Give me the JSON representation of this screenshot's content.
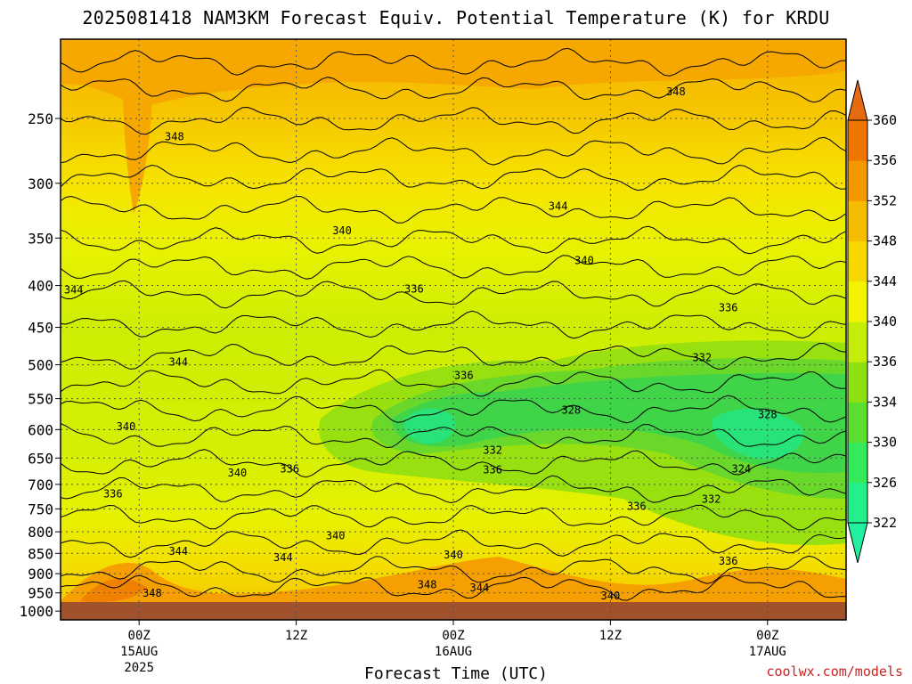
{
  "chart_data": {
    "type": "heatmap",
    "title": "2025081418 NAM3KM Forecast Equiv. Potential Temperature (K) for KRDU",
    "xlabel": "Forecast Time (UTC)",
    "ylabel": "",
    "y_axis": {
      "scale": "pressure",
      "ticks": [
        250,
        300,
        350,
        400,
        450,
        500,
        550,
        600,
        650,
        700,
        750,
        800,
        850,
        900,
        950,
        1000
      ],
      "range": [
        200,
        1025
      ]
    },
    "x_axis": {
      "range_hours": [
        -6,
        54
      ],
      "ticks": [
        {
          "hour": 0,
          "label": "00Z",
          "sub": "15AUG",
          "sub2": "2025"
        },
        {
          "hour": 12,
          "label": "12Z",
          "sub": "",
          "sub2": ""
        },
        {
          "hour": 24,
          "label": "00Z",
          "sub": "16AUG",
          "sub2": ""
        },
        {
          "hour": 36,
          "label": "12Z",
          "sub": "",
          "sub2": ""
        },
        {
          "hour": 48,
          "label": "00Z",
          "sub": "17AUG",
          "sub2": ""
        }
      ]
    },
    "grid": true,
    "colorbar": {
      "placement": "right",
      "levels": [
        322,
        326,
        330,
        334,
        336,
        340,
        344,
        348,
        352,
        356,
        360
      ],
      "colors": [
        "#23f08a",
        "#35ea5a",
        "#5ade30",
        "#8ee010",
        "#c4ee08",
        "#f4f400",
        "#f6d800",
        "#f6bc00",
        "#f59800",
        "#f07400"
      ]
    },
    "contour_labels": [
      {
        "t": 2.7,
        "p": 263,
        "v": "348"
      },
      {
        "t": 41,
        "p": 232,
        "v": "348"
      },
      {
        "t": 32,
        "p": 320,
        "v": "344"
      },
      {
        "t": 15.5,
        "p": 343,
        "v": "340"
      },
      {
        "t": 34,
        "p": 373,
        "v": "340"
      },
      {
        "t": -5,
        "p": 405,
        "v": "344"
      },
      {
        "t": 21,
        "p": 404,
        "v": "336"
      },
      {
        "t": 45,
        "p": 426,
        "v": "336"
      },
      {
        "t": 3,
        "p": 496,
        "v": "344"
      },
      {
        "t": 43,
        "p": 490,
        "v": "332"
      },
      {
        "t": 24.8,
        "p": 515,
        "v": "336"
      },
      {
        "t": 33,
        "p": 568,
        "v": "328"
      },
      {
        "t": 48,
        "p": 575,
        "v": "328"
      },
      {
        "t": -1,
        "p": 595,
        "v": "340"
      },
      {
        "t": 27,
        "p": 636,
        "v": "332"
      },
      {
        "t": 7.5,
        "p": 678,
        "v": "340"
      },
      {
        "t": 11.5,
        "p": 670,
        "v": "336"
      },
      {
        "t": 27,
        "p": 672,
        "v": "336"
      },
      {
        "t": 46,
        "p": 670,
        "v": "324"
      },
      {
        "t": -2,
        "p": 719,
        "v": "336"
      },
      {
        "t": 38,
        "p": 745,
        "v": "336"
      },
      {
        "t": 43.7,
        "p": 730,
        "v": "332"
      },
      {
        "t": 15,
        "p": 809,
        "v": "340"
      },
      {
        "t": 3,
        "p": 845,
        "v": "344"
      },
      {
        "t": 11,
        "p": 860,
        "v": "344"
      },
      {
        "t": 24,
        "p": 854,
        "v": "340"
      },
      {
        "t": 45,
        "p": 869,
        "v": "336"
      },
      {
        "t": 22,
        "p": 928,
        "v": "348"
      },
      {
        "t": 26,
        "p": 936,
        "v": "344"
      },
      {
        "t": 1,
        "p": 951,
        "v": "348"
      },
      {
        "t": 36,
        "p": 958,
        "v": "340"
      }
    ]
  },
  "footer": {
    "credit": "coolwx.com/models"
  }
}
